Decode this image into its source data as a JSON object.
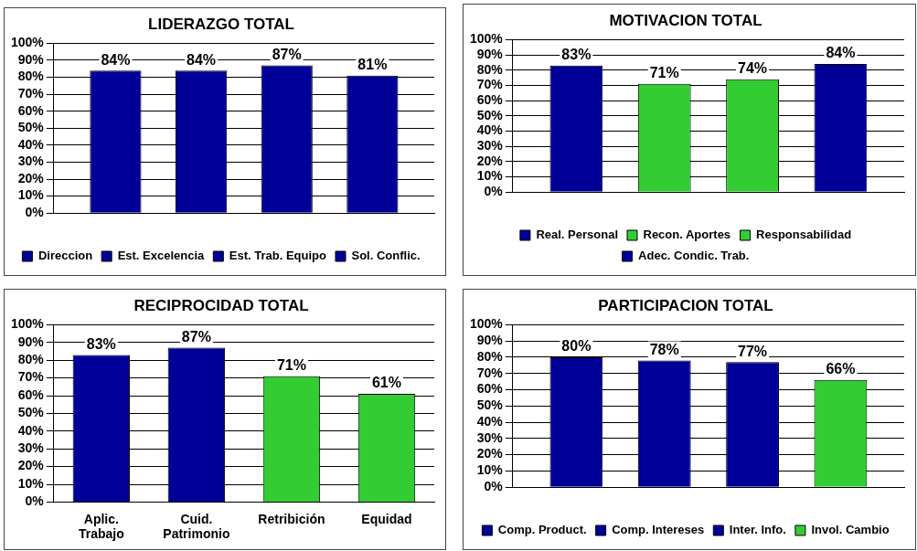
{
  "chart_data": [
    {
      "type": "bar",
      "title": "LIDERAZGO TOTAL",
      "categories": [
        null
      ],
      "series": [
        {
          "name": "Direccion",
          "color": "#000099",
          "values": [
            84
          ],
          "value_labels": [
            "84%"
          ]
        },
        {
          "name": "Est. Excelencia",
          "color": "#000099",
          "values": [
            84
          ],
          "value_labels": [
            "84%"
          ]
        },
        {
          "name": "Est. Trab. Equipo",
          "color": "#000099",
          "values": [
            87
          ],
          "value_labels": [
            "87%"
          ]
        },
        {
          "name": "Sol. Conflic.",
          "color": "#000099",
          "values": [
            81
          ],
          "value_labels": [
            "81%"
          ]
        }
      ],
      "ylim": [
        0,
        100
      ],
      "yticks": [
        {
          "value": 0,
          "label": "0%"
        },
        {
          "value": 10,
          "label": "10%"
        },
        {
          "value": 20,
          "label": "20%"
        },
        {
          "value": 30,
          "label": "30%"
        },
        {
          "value": 40,
          "label": "40%"
        },
        {
          "value": 50,
          "label": "50%"
        },
        {
          "value": 60,
          "label": "60%"
        },
        {
          "value": 70,
          "label": "70%"
        },
        {
          "value": 80,
          "label": "80%"
        },
        {
          "value": 90,
          "label": "90%"
        },
        {
          "value": 100,
          "label": "100%"
        }
      ],
      "grid": "y",
      "legend": "bottom"
    },
    {
      "type": "bar",
      "title": "MOTIVACION TOTAL",
      "categories": [
        null
      ],
      "series": [
        {
          "name": "Real. Personal",
          "color": "#000099",
          "values": [
            83
          ],
          "value_labels": [
            "83%"
          ]
        },
        {
          "name": "Recon. Aportes",
          "color": "#33cc33",
          "values": [
            71
          ],
          "value_labels": [
            "71%"
          ]
        },
        {
          "name": "Responsabilidad",
          "color": "#33cc33",
          "values": [
            74
          ],
          "value_labels": [
            "74%"
          ]
        },
        {
          "name": "Adec. Condic. Trab.",
          "color": "#000099",
          "values": [
            84
          ],
          "value_labels": [
            "84%"
          ]
        }
      ],
      "ylim": [
        0,
        100
      ],
      "yticks": [
        {
          "value": 0,
          "label": "0%"
        },
        {
          "value": 10,
          "label": "10%"
        },
        {
          "value": 20,
          "label": "20%"
        },
        {
          "value": 30,
          "label": "30%"
        },
        {
          "value": 40,
          "label": "40%"
        },
        {
          "value": 50,
          "label": "50%"
        },
        {
          "value": 60,
          "label": "60%"
        },
        {
          "value": 70,
          "label": "70%"
        },
        {
          "value": 80,
          "label": "80%"
        },
        {
          "value": 90,
          "label": "90%"
        },
        {
          "value": 100,
          "label": "100%"
        }
      ],
      "grid": "y",
      "legend": "bottom"
    },
    {
      "type": "bar",
      "title": "RECIPROCIDAD TOTAL",
      "categories": [
        "Aplic. Trabajo",
        "Cuid. Patrimonio",
        "Retribición",
        "Equidad"
      ],
      "values": [
        83,
        87,
        71,
        61
      ],
      "colors": [
        "#000099",
        "#000099",
        "#33cc33",
        "#33cc33"
      ],
      "value_labels": [
        "83%",
        "87%",
        "71%",
        "61%"
      ],
      "ylim": [
        0,
        100
      ],
      "yticks": [
        {
          "value": 0,
          "label": "0%"
        },
        {
          "value": 10,
          "label": "10%"
        },
        {
          "value": 20,
          "label": "20%"
        },
        {
          "value": 30,
          "label": "30%"
        },
        {
          "value": 40,
          "label": "40%"
        },
        {
          "value": 50,
          "label": "50%"
        },
        {
          "value": 60,
          "label": "60%"
        },
        {
          "value": 70,
          "label": "70%"
        },
        {
          "value": 80,
          "label": "80%"
        },
        {
          "value": 90,
          "label": "90%"
        },
        {
          "value": 100,
          "label": "100%"
        }
      ],
      "grid": "y",
      "legend": false
    },
    {
      "type": "bar",
      "title": "PARTICIPACION TOTAL",
      "categories": [
        null
      ],
      "series": [
        {
          "name": "Comp. Product.",
          "color": "#000099",
          "values": [
            80
          ],
          "value_labels": [
            "80%"
          ]
        },
        {
          "name": "Comp. Intereses",
          "color": "#000099",
          "values": [
            78
          ],
          "value_labels": [
            "78%"
          ]
        },
        {
          "name": "Inter. Info.",
          "color": "#000099",
          "values": [
            77
          ],
          "value_labels": [
            "77%"
          ]
        },
        {
          "name": "Invol. Cambio",
          "color": "#33cc33",
          "values": [
            66
          ],
          "value_labels": [
            "66%"
          ]
        }
      ],
      "ylim": [
        0,
        100
      ],
      "yticks": [
        {
          "value": 0,
          "label": "0%"
        },
        {
          "value": 10,
          "label": "10%"
        },
        {
          "value": 20,
          "label": "20%"
        },
        {
          "value": 30,
          "label": "30%"
        },
        {
          "value": 40,
          "label": "40%"
        },
        {
          "value": 50,
          "label": "50%"
        },
        {
          "value": 60,
          "label": "60%"
        },
        {
          "value": 70,
          "label": "70%"
        },
        {
          "value": 80,
          "label": "80%"
        },
        {
          "value": 90,
          "label": "90%"
        },
        {
          "value": 100,
          "label": "100%"
        }
      ],
      "grid": "y",
      "legend": "bottom"
    }
  ]
}
